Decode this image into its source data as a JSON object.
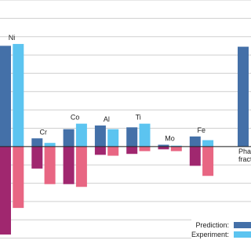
{
  "chart_data": {
    "type": "bar",
    "categories": [
      "Ni",
      "Cr",
      "Co",
      "Al",
      "Ti",
      "Mo",
      "Fe",
      "Phase fraction"
    ],
    "series": [
      {
        "name": "Prediction:",
        "color": "#4470a8",
        "negative_color": "#a0276f",
        "values": [
          5.5,
          0.45,
          0.95,
          1.15,
          1.05,
          0.1,
          0.55,
          5.45
        ],
        "negative_values": [
          -4.8,
          -1.2,
          -2.05,
          -0.45,
          -0.4,
          -0.15,
          -1.05,
          null
        ]
      },
      {
        "name": "Experiment:",
        "color": "#5cc4f0",
        "negative_color": "#e86683",
        "values": [
          5.6,
          0.2,
          1.25,
          0.95,
          1.25,
          0.05,
          0.35,
          null
        ],
        "negative_values": [
          -3.35,
          -2.05,
          -2.2,
          -0.5,
          -0.25,
          -0.25,
          -1.6,
          null
        ]
      }
    ],
    "ylim": [
      -5.7,
      8.0
    ],
    "yticks": [
      -5,
      -4,
      -3,
      -2,
      -1,
      0,
      1,
      2,
      3,
      4,
      5,
      6,
      7,
      8
    ],
    "grid": true
  }
}
